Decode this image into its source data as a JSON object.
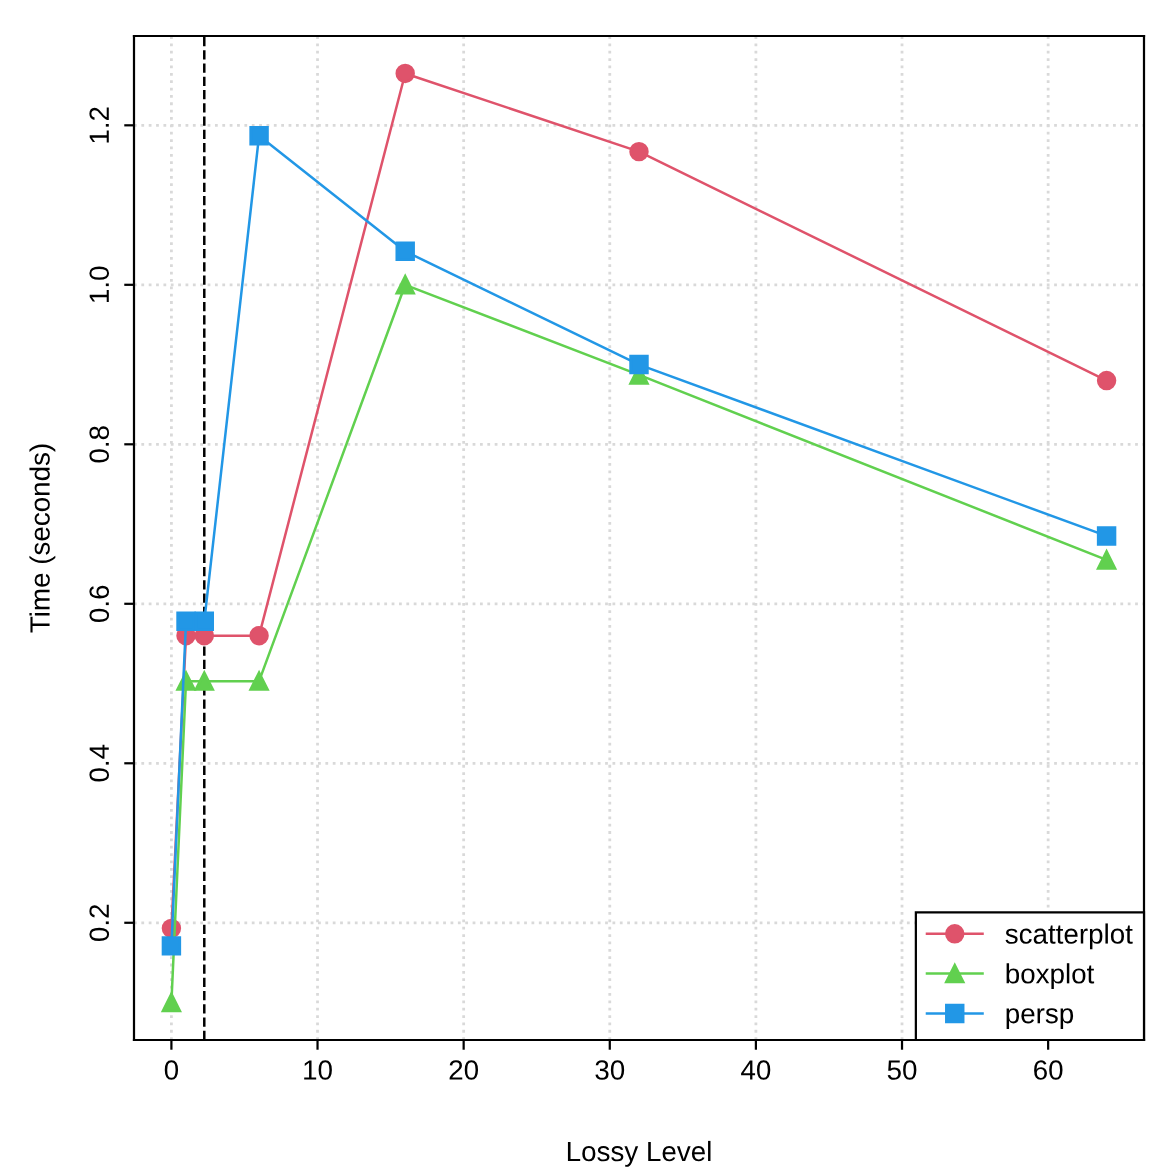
{
  "chart_data": {
    "type": "line",
    "xlabel": "Lossy Level",
    "ylabel": "Time (seconds)",
    "x": [
      0,
      1,
      2.25,
      6,
      16,
      32,
      64
    ],
    "series": [
      {
        "name": "scatterplot",
        "color": "#df536b",
        "marker": "circle",
        "values": [
          0.193,
          0.56,
          0.56,
          0.56,
          1.265,
          1.167,
          0.88
        ]
      },
      {
        "name": "boxplot",
        "color": "#61d04f",
        "marker": "triangle",
        "values": [
          0.1,
          0.503,
          0.503,
          0.503,
          1.0,
          0.887,
          0.655
        ]
      },
      {
        "name": "persp",
        "color": "#2297e6",
        "marker": "square",
        "values": [
          0.171,
          0.578,
          0.578,
          1.187,
          1.042,
          0.9,
          0.685
        ]
      }
    ],
    "xlim": [
      -2.56,
      66.56
    ],
    "ylim": [
      0.053,
      1.312
    ],
    "xticks": [
      0,
      10,
      20,
      30,
      40,
      50,
      60
    ],
    "yticks": [
      {
        "value": 0.2,
        "label": "0.2"
      },
      {
        "value": 0.4,
        "label": "0.4"
      },
      {
        "value": 0.6,
        "label": "0.6"
      },
      {
        "value": 0.8,
        "label": "0.8"
      },
      {
        "value": 1.0,
        "label": "1.0"
      },
      {
        "value": 1.2,
        "label": "1.2"
      }
    ],
    "ref_lines": [
      {
        "axis": "x",
        "value": 2.25,
        "color": "#000000",
        "line_style": "dashed"
      }
    ],
    "grid": true,
    "legend": "bottom right",
    "line_style": "solid"
  }
}
